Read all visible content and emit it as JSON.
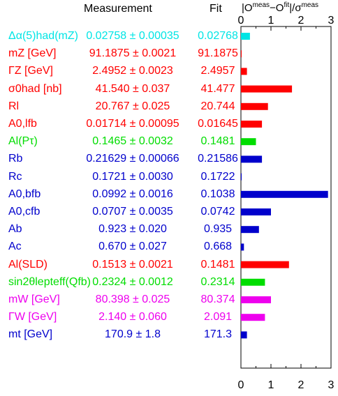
{
  "header": {
    "measurement": "Measurement",
    "fit": "Fit",
    "pull_prefix": "|O",
    "pull_meas": "meas",
    "pull_mid": "−O",
    "pull_fit": "fit",
    "pull_suffix": "|/σ",
    "pull_sigma": "meas"
  },
  "colors": {
    "cyan": "#00e5e5",
    "red": "#ff0000",
    "green": "#00dd00",
    "blue": "#0000cc",
    "magenta": "#ee00ee"
  },
  "rows": [
    {
      "label": "Δα(5)had(mZ)",
      "measurement": "0.02758 ± 0.00035",
      "fit": "0.02768",
      "color": "#00e5e5"
    },
    {
      "label": "mZ [GeV]",
      "measurement": "91.1875 ± 0.0021",
      "fit": "91.1875",
      "color": "#ff0000"
    },
    {
      "label": "ΓZ [GeV]",
      "measurement": "2.4952 ± 0.0023",
      "fit": "2.4957",
      "color": "#ff0000"
    },
    {
      "label": "σ0had [nb]",
      "measurement": "41.540 ± 0.037",
      "fit": "41.477",
      "color": "#ff0000"
    },
    {
      "label": "Rl",
      "measurement": "20.767 ± 0.025",
      "fit": "20.744",
      "color": "#ff0000"
    },
    {
      "label": "A0,lfb",
      "measurement": "0.01714 ± 0.00095",
      "fit": "0.01645",
      "color": "#ff0000"
    },
    {
      "label": "Al(Pτ)",
      "measurement": "0.1465 ± 0.0032",
      "fit": "0.1481",
      "color": "#00dd00"
    },
    {
      "label": "Rb",
      "measurement": "0.21629 ± 0.00066",
      "fit": "0.21586",
      "color": "#0000cc"
    },
    {
      "label": "Rc",
      "measurement": "0.1721 ± 0.0030",
      "fit": "0.1722",
      "color": "#0000cc"
    },
    {
      "label": "A0,bfb",
      "measurement": "0.0992 ± 0.0016",
      "fit": "0.1038",
      "color": "#0000cc"
    },
    {
      "label": "A0,cfb",
      "measurement": "0.0707 ± 0.0035",
      "fit": "0.0742",
      "color": "#0000cc"
    },
    {
      "label": "Ab",
      "measurement": "0.923 ± 0.020",
      "fit": "0.935",
      "color": "#0000cc"
    },
    {
      "label": "Ac",
      "measurement": "0.670 ± 0.027",
      "fit": "0.668",
      "color": "#0000cc"
    },
    {
      "label": "Al(SLD)",
      "measurement": "0.1513 ± 0.0021",
      "fit": "0.1481",
      "color": "#ff0000"
    },
    {
      "label": "sin2θlepteff(Qfb)",
      "measurement": "0.2324 ± 0.0012",
      "fit": "0.2314",
      "color": "#00dd00"
    },
    {
      "label": "mW [GeV]",
      "measurement": "80.398 ± 0.025",
      "fit": "80.374",
      "color": "#ee00ee"
    },
    {
      "label": "ΓW [GeV]",
      "measurement": "2.140 ± 0.060",
      "fit": "2.091",
      "color": "#ee00ee"
    },
    {
      "label": "mt [GeV]",
      "measurement": "170.9 ± 1.8",
      "fit": "171.3",
      "color": "#0000cc"
    }
  ],
  "chart_data": {
    "type": "bar",
    "orientation": "horizontal",
    "categories": [
      "Δα(5)had(mZ)",
      "mZ",
      "ΓZ",
      "σ0had",
      "Rl",
      "A0,lfb",
      "Al(Pτ)",
      "Rb",
      "Rc",
      "A0,bfb",
      "A0,cfb",
      "Ab",
      "Ac",
      "Al(SLD)",
      "sin2θlepteff(Qfb)",
      "mW",
      "ΓW",
      "mt"
    ],
    "values": [
      0.3,
      0.0,
      0.2,
      1.7,
      0.9,
      0.7,
      0.5,
      0.7,
      0.0,
      2.9,
      1.0,
      0.6,
      0.1,
      1.6,
      0.8,
      1.0,
      0.8,
      0.2
    ],
    "xlim": [
      0,
      3
    ],
    "xticks": [
      "0",
      "1",
      "2",
      "3"
    ],
    "title": "|Omeas−Ofit|/σmeas",
    "grid": false
  }
}
